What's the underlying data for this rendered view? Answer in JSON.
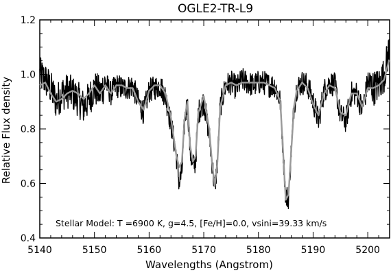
{
  "chart_data": {
    "type": "line",
    "title": "OGLE2-TR-L9",
    "xlabel": "Wavelengths (Angstrom)",
    "ylabel": "Relative Flux density",
    "annotation": "Stellar Model: T =6900 K, g=4.5, [Fe/H]=0.0, vsini=39.33 km/s",
    "xlim": [
      5140,
      5204
    ],
    "ylim": [
      0.4,
      1.2
    ],
    "x_ticks": [
      5140,
      5150,
      5160,
      5170,
      5180,
      5190,
      5200
    ],
    "x_tick_labels": [
      "5140",
      "5150",
      "5160",
      "5170",
      "5180",
      "5190",
      "5200"
    ],
    "y_ticks": [
      0.4,
      0.6,
      0.8,
      1.0,
      1.2
    ],
    "y_tick_labels": [
      "0.4",
      "0.6",
      "0.8",
      "1.0",
      "1.2"
    ],
    "grid": false,
    "series": [
      {
        "color": "#000000",
        "style": "noisy",
        "x": [
          5140,
          5141,
          5142,
          5143,
          5144,
          5145,
          5146,
          5147,
          5148,
          5149,
          5150,
          5151,
          5152,
          5153,
          5154,
          5155,
          5156,
          5157,
          5158,
          5159,
          5160,
          5161,
          5162,
          5163,
          5164,
          5165,
          5165.5,
          5166,
          5166.5,
          5167,
          5167.5,
          5168,
          5168.5,
          5169,
          5170,
          5171,
          5171.5,
          5172,
          5172.5,
          5173,
          5174,
          5175,
          5176,
          5177,
          5178,
          5179,
          5180,
          5181,
          5182,
          5183,
          5184,
          5184.5,
          5185,
          5185.5,
          5186,
          5186.5,
          5187,
          5188,
          5189,
          5190,
          5191,
          5192,
          5193,
          5194,
          5195,
          5196,
          5197,
          5198,
          5199,
          5200,
          5201,
          5202,
          5203,
          5204
        ],
        "y": [
          1.0,
          0.98,
          0.95,
          0.9,
          0.93,
          0.94,
          0.93,
          0.91,
          0.88,
          0.91,
          0.95,
          0.93,
          0.97,
          0.93,
          0.96,
          0.95,
          0.95,
          0.96,
          0.9,
          0.86,
          0.94,
          0.95,
          0.96,
          0.92,
          0.82,
          0.7,
          0.6,
          0.64,
          0.83,
          0.9,
          0.72,
          0.66,
          0.68,
          0.86,
          0.9,
          0.78,
          0.68,
          0.58,
          0.68,
          0.88,
          0.96,
          0.97,
          0.95,
          0.98,
          0.97,
          0.96,
          0.97,
          0.97,
          0.96,
          0.96,
          0.9,
          0.72,
          0.55,
          0.55,
          0.72,
          0.88,
          0.95,
          0.97,
          0.96,
          0.9,
          0.83,
          0.94,
          0.97,
          0.96,
          0.85,
          0.83,
          0.93,
          0.93,
          0.87,
          0.97,
          0.95,
          0.96,
          1.0,
          1.1
        ]
      },
      {
        "color": "#999999",
        "style": "model",
        "x": [
          5140,
          5141,
          5142,
          5143,
          5144,
          5145,
          5146,
          5147,
          5148,
          5149,
          5150,
          5151,
          5152,
          5153,
          5154,
          5155,
          5156,
          5157,
          5158,
          5159,
          5160,
          5161,
          5162,
          5163,
          5164,
          5165,
          5165.5,
          5166,
          5166.5,
          5167,
          5167.5,
          5168,
          5168.5,
          5169,
          5170,
          5171,
          5171.5,
          5172,
          5172.5,
          5173,
          5174,
          5175,
          5176,
          5177,
          5178,
          5179,
          5180,
          5181,
          5182,
          5183,
          5184,
          5184.5,
          5185,
          5185.5,
          5186,
          5186.5,
          5187,
          5188,
          5189,
          5190,
          5191,
          5192,
          5193,
          5194,
          5195,
          5196,
          5197,
          5198,
          5199,
          5200,
          5201,
          5202,
          5203,
          5204
        ],
        "y": [
          0.96,
          0.97,
          0.93,
          0.9,
          0.91,
          0.93,
          0.94,
          0.93,
          0.91,
          0.93,
          0.96,
          0.93,
          0.96,
          0.93,
          0.96,
          0.96,
          0.95,
          0.95,
          0.9,
          0.87,
          0.94,
          0.96,
          0.96,
          0.93,
          0.84,
          0.7,
          0.66,
          0.68,
          0.84,
          0.9,
          0.74,
          0.68,
          0.7,
          0.86,
          0.92,
          0.8,
          0.68,
          0.59,
          0.68,
          0.88,
          0.96,
          0.97,
          0.96,
          0.97,
          0.97,
          0.97,
          0.97,
          0.97,
          0.96,
          0.95,
          0.9,
          0.72,
          0.54,
          0.56,
          0.72,
          0.88,
          0.94,
          0.97,
          0.95,
          0.89,
          0.85,
          0.93,
          0.96,
          0.95,
          0.86,
          0.85,
          0.93,
          0.93,
          0.88,
          0.95,
          0.95,
          0.96,
          0.98,
          1.06
        ]
      }
    ]
  }
}
